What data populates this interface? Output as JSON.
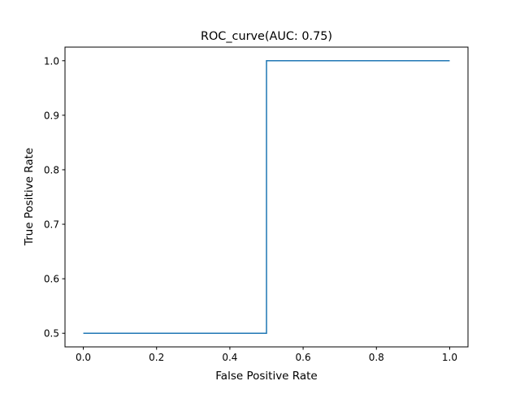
{
  "chart_data": {
    "type": "line",
    "title": "ROC_curve(AUC: 0.75)",
    "xlabel": "False Positive Rate",
    "ylabel": "True Positive Rate",
    "xlim": [
      -0.05,
      1.05
    ],
    "ylim": [
      0.475,
      1.025
    ],
    "xticks": [
      0.0,
      0.2,
      0.4,
      0.6,
      0.8,
      1.0
    ],
    "xtick_labels": [
      "0.0",
      "0.2",
      "0.4",
      "0.6",
      "0.8",
      "1.0"
    ],
    "yticks": [
      0.5,
      0.6,
      0.7,
      0.8,
      0.9,
      1.0
    ],
    "ytick_labels": [
      "0.5",
      "0.6",
      "0.7",
      "0.8",
      "0.9",
      "1.0"
    ],
    "grid": false,
    "series": [
      {
        "x": [
          0.0,
          0.5,
          0.5,
          1.0
        ],
        "y": [
          0.5,
          0.5,
          1.0,
          1.0
        ],
        "color": "#1f77b4"
      }
    ]
  }
}
